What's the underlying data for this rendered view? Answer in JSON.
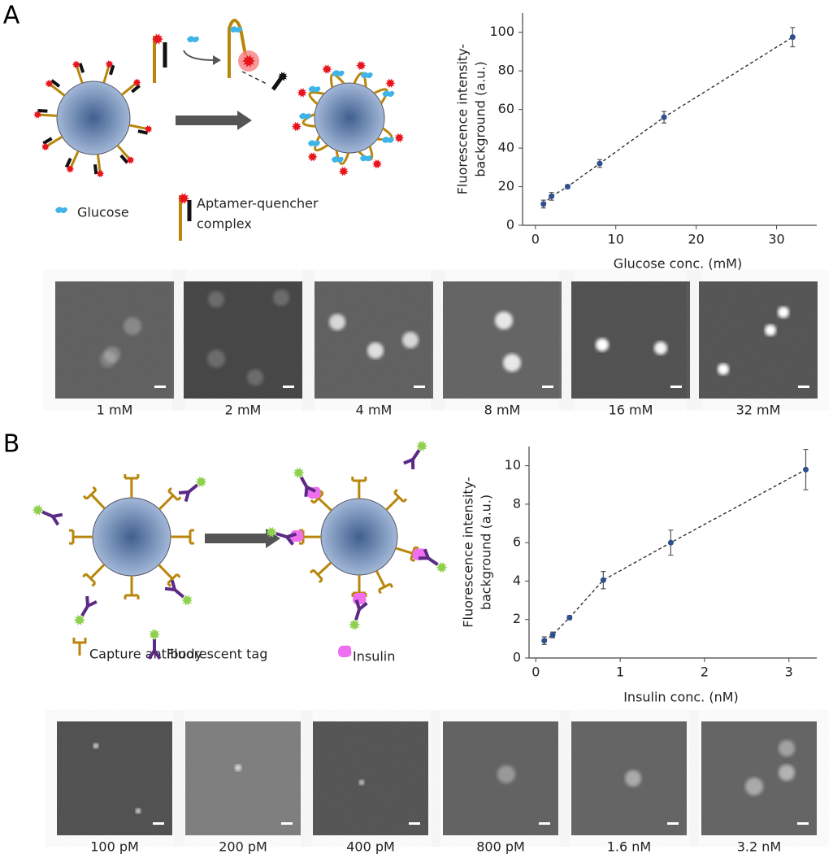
{
  "panels": [
    {
      "label": "A",
      "legend": [
        "Glucose",
        "Aptamer-quencher",
        "complex"
      ],
      "images": [
        "1 mM",
        "2 mM",
        "4 mM",
        "8 mM",
        "16 mM",
        "32 mM"
      ]
    },
    {
      "label": "B",
      "legend": [
        "Capture antibody",
        "Fluorescent tag",
        "Insulin"
      ],
      "images": [
        "100 pM",
        "200 pM",
        "400 pM",
        "800 pM",
        "1.6 nM",
        "3.2 nM"
      ]
    }
  ],
  "chart_data": [
    {
      "type": "scatter",
      "xlabel": "Glucose conc. (mM)",
      "ylabel": [
        "Fluorescence intensity-",
        "background (a.u.)"
      ],
      "x": [
        1,
        2,
        4,
        8,
        16,
        32
      ],
      "values": [
        11,
        15,
        20,
        32,
        56,
        97.5
      ],
      "errors": [
        2,
        2,
        1,
        2,
        3,
        5
      ],
      "color": "#2f4f8f",
      "trendline": "dashed",
      "xlim": [
        -1.6,
        35
      ],
      "xticks": [
        0,
        10,
        20,
        30
      ],
      "ylim": [
        0,
        110
      ],
      "yticks": [
        0,
        20,
        40,
        60,
        80,
        100
      ]
    },
    {
      "type": "scatter",
      "xlabel": "Insulin conc. (nM)",
      "ylabel": [
        "Fluorescence intensity-",
        "background (a.u.)"
      ],
      "x": [
        0.1,
        0.2,
        0.4,
        0.8,
        1.6,
        3.2
      ],
      "values": [
        0.9,
        1.2,
        2.1,
        4.05,
        6.0,
        9.8
      ],
      "errors": [
        0.2,
        0.15,
        0.1,
        0.45,
        0.65,
        1.05
      ],
      "color": "#2f4f8f",
      "trendline": "dashed",
      "xlim": [
        -0.08,
        3.33
      ],
      "xticks": [
        0,
        1,
        2,
        3
      ],
      "ylim": [
        0,
        11
      ],
      "yticks": [
        0,
        2,
        4,
        6,
        8,
        10
      ]
    }
  ]
}
